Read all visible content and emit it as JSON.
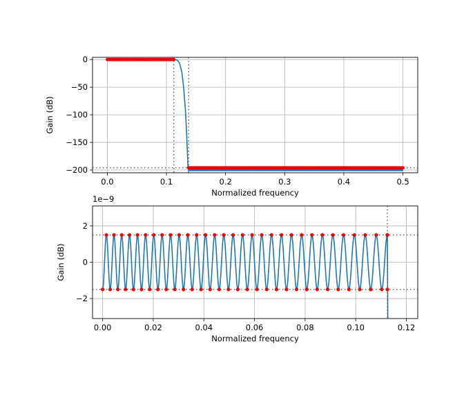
{
  "chart_data": [
    {
      "type": "line",
      "xlabel": "Normalized frequency",
      "ylabel": "Gain (dB)",
      "xlim": [
        -0.025,
        0.525
      ],
      "ylim": [
        -205,
        4
      ],
      "xticks": [
        0.0,
        0.1,
        0.2,
        0.3,
        0.4,
        0.5
      ],
      "xtick_labels": [
        "0.0",
        "0.1",
        "0.2",
        "0.3",
        "0.4",
        "0.5"
      ],
      "yticks": [
        0,
        -50,
        -100,
        -150,
        -200
      ],
      "ytick_labels": [
        "0",
        "−50",
        "−100",
        "−150",
        "−200"
      ],
      "grid": true,
      "guides": {
        "vertical": [
          0.1125,
          0.1375
        ],
        "horizontal": [
          -196
        ]
      },
      "passband": {
        "x": [
          0.0,
          0.1125
        ],
        "gain": 0
      },
      "stopband": {
        "x": [
          0.1375,
          0.5
        ],
        "gain": -196,
        "floor": -202
      },
      "response": [
        [
          0.0,
          0
        ],
        [
          0.1125,
          0
        ],
        [
          0.118,
          -1
        ],
        [
          0.122,
          -6
        ],
        [
          0.126,
          -22
        ],
        [
          0.129,
          -50
        ],
        [
          0.132,
          -90
        ],
        [
          0.134,
          -130
        ],
        [
          0.1355,
          -170
        ],
        [
          0.1365,
          -196
        ],
        [
          0.1375,
          -201
        ],
        [
          0.5,
          -201
        ]
      ],
      "colors": {
        "response": "#1f77b4",
        "constraints": "#ff0000",
        "guides": "#555555"
      }
    },
    {
      "type": "line",
      "xlabel": "Normalized frequency",
      "ylabel": "Gain (dB)",
      "offset_label": "1e−9",
      "xlim": [
        -0.004,
        0.1245
      ],
      "ylim": [
        -3.1,
        3.1
      ],
      "xticks": [
        0.0,
        0.02,
        0.04,
        0.06,
        0.08,
        0.1,
        0.12
      ],
      "xtick_labels": [
        "0.00",
        "0.02",
        "0.04",
        "0.06",
        "0.08",
        "0.10",
        "0.12"
      ],
      "yticks": [
        2,
        0,
        -2
      ],
      "ytick_labels": [
        "2",
        "0",
        "−2"
      ],
      "grid": true,
      "guides": {
        "vertical": [
          0.1125
        ],
        "horizontal": [
          1.5,
          -1.5
        ]
      },
      "ripple": {
        "amplitude": 1.5,
        "x_start": 0.0,
        "x_end": 0.1125,
        "n_peaks": 31,
        "bunching": 0.25
      },
      "colors": {
        "response": "#1f77b4",
        "constraints": "#ff0000",
        "guides": "#555555"
      }
    }
  ]
}
